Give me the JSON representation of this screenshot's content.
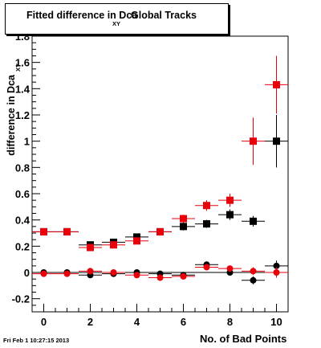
{
  "title": {
    "main": "Fitted difference in Dca",
    "sub": "XY",
    "rest": "Global Tracks"
  },
  "ylabel": {
    "main": "difference in Dca",
    "sub": "XY"
  },
  "xlabel": "No. of Bad Points",
  "timestamp": "Fri Feb  1 10:27:15 2013",
  "colors": {
    "red": "#e8000b",
    "black": "#000000"
  },
  "chart_data": {
    "type": "scatter",
    "title": "Fitted difference in Dca XY Global Tracks",
    "xlabel": "No. of Bad Points",
    "ylabel": "difference in Dca XY",
    "xlim": [
      -0.5,
      10.5
    ],
    "ylim": [
      -0.3,
      1.8
    ],
    "x_ticks": [
      "0",
      "2",
      "4",
      "6",
      "8",
      "10"
    ],
    "y_ticks": [
      "-0.2",
      "0",
      "0.2",
      "0.4",
      "0.6",
      "0.8",
      "1",
      "1.2",
      "1.4",
      "1.6",
      "1.8"
    ],
    "grid": false,
    "series": [
      {
        "color": "black",
        "marker": "square",
        "x": [
          0,
          1,
          2,
          3,
          4,
          5,
          6,
          7,
          8,
          9,
          10
        ],
        "y": [
          0.31,
          0.31,
          0.21,
          0.23,
          0.27,
          0.31,
          0.35,
          0.37,
          0.44,
          0.39,
          1.0
        ],
        "yerr": [
          0.02,
          0.02,
          0.02,
          0.02,
          0.02,
          0.02,
          0.03,
          0.03,
          0.04,
          0.04,
          0.2
        ]
      },
      {
        "color": "red",
        "marker": "square",
        "x": [
          0,
          1,
          2,
          3,
          4,
          5,
          6,
          7,
          8,
          9,
          10
        ],
        "y": [
          0.31,
          0.31,
          0.19,
          0.21,
          0.24,
          0.31,
          0.41,
          0.51,
          0.55,
          1.0,
          1.43
        ],
        "yerr": [
          0.02,
          0.02,
          0.02,
          0.02,
          0.02,
          0.02,
          0.03,
          0.04,
          0.05,
          0.18,
          0.22
        ]
      },
      {
        "color": "black",
        "marker": "circle",
        "x": [
          0,
          1,
          2,
          3,
          4,
          5,
          6,
          7,
          8,
          9,
          10
        ],
        "y": [
          0.0,
          0.0,
          -0.02,
          -0.01,
          0.0,
          -0.01,
          -0.02,
          0.06,
          0.0,
          -0.06,
          0.05
        ],
        "yerr": [
          0.01,
          0.01,
          0.01,
          0.01,
          0.01,
          0.01,
          0.02,
          0.02,
          0.02,
          0.03,
          0.04
        ]
      },
      {
        "color": "red",
        "marker": "circle",
        "x": [
          0,
          1,
          2,
          3,
          4,
          5,
          6,
          7,
          8,
          9,
          10
        ],
        "y": [
          -0.01,
          -0.01,
          0.01,
          0.0,
          -0.02,
          -0.04,
          -0.03,
          0.04,
          0.03,
          0.01,
          0.0
        ],
        "yerr": [
          0.01,
          0.01,
          0.01,
          0.01,
          0.01,
          0.02,
          0.02,
          0.02,
          0.02,
          0.03,
          0.04
        ]
      }
    ]
  }
}
